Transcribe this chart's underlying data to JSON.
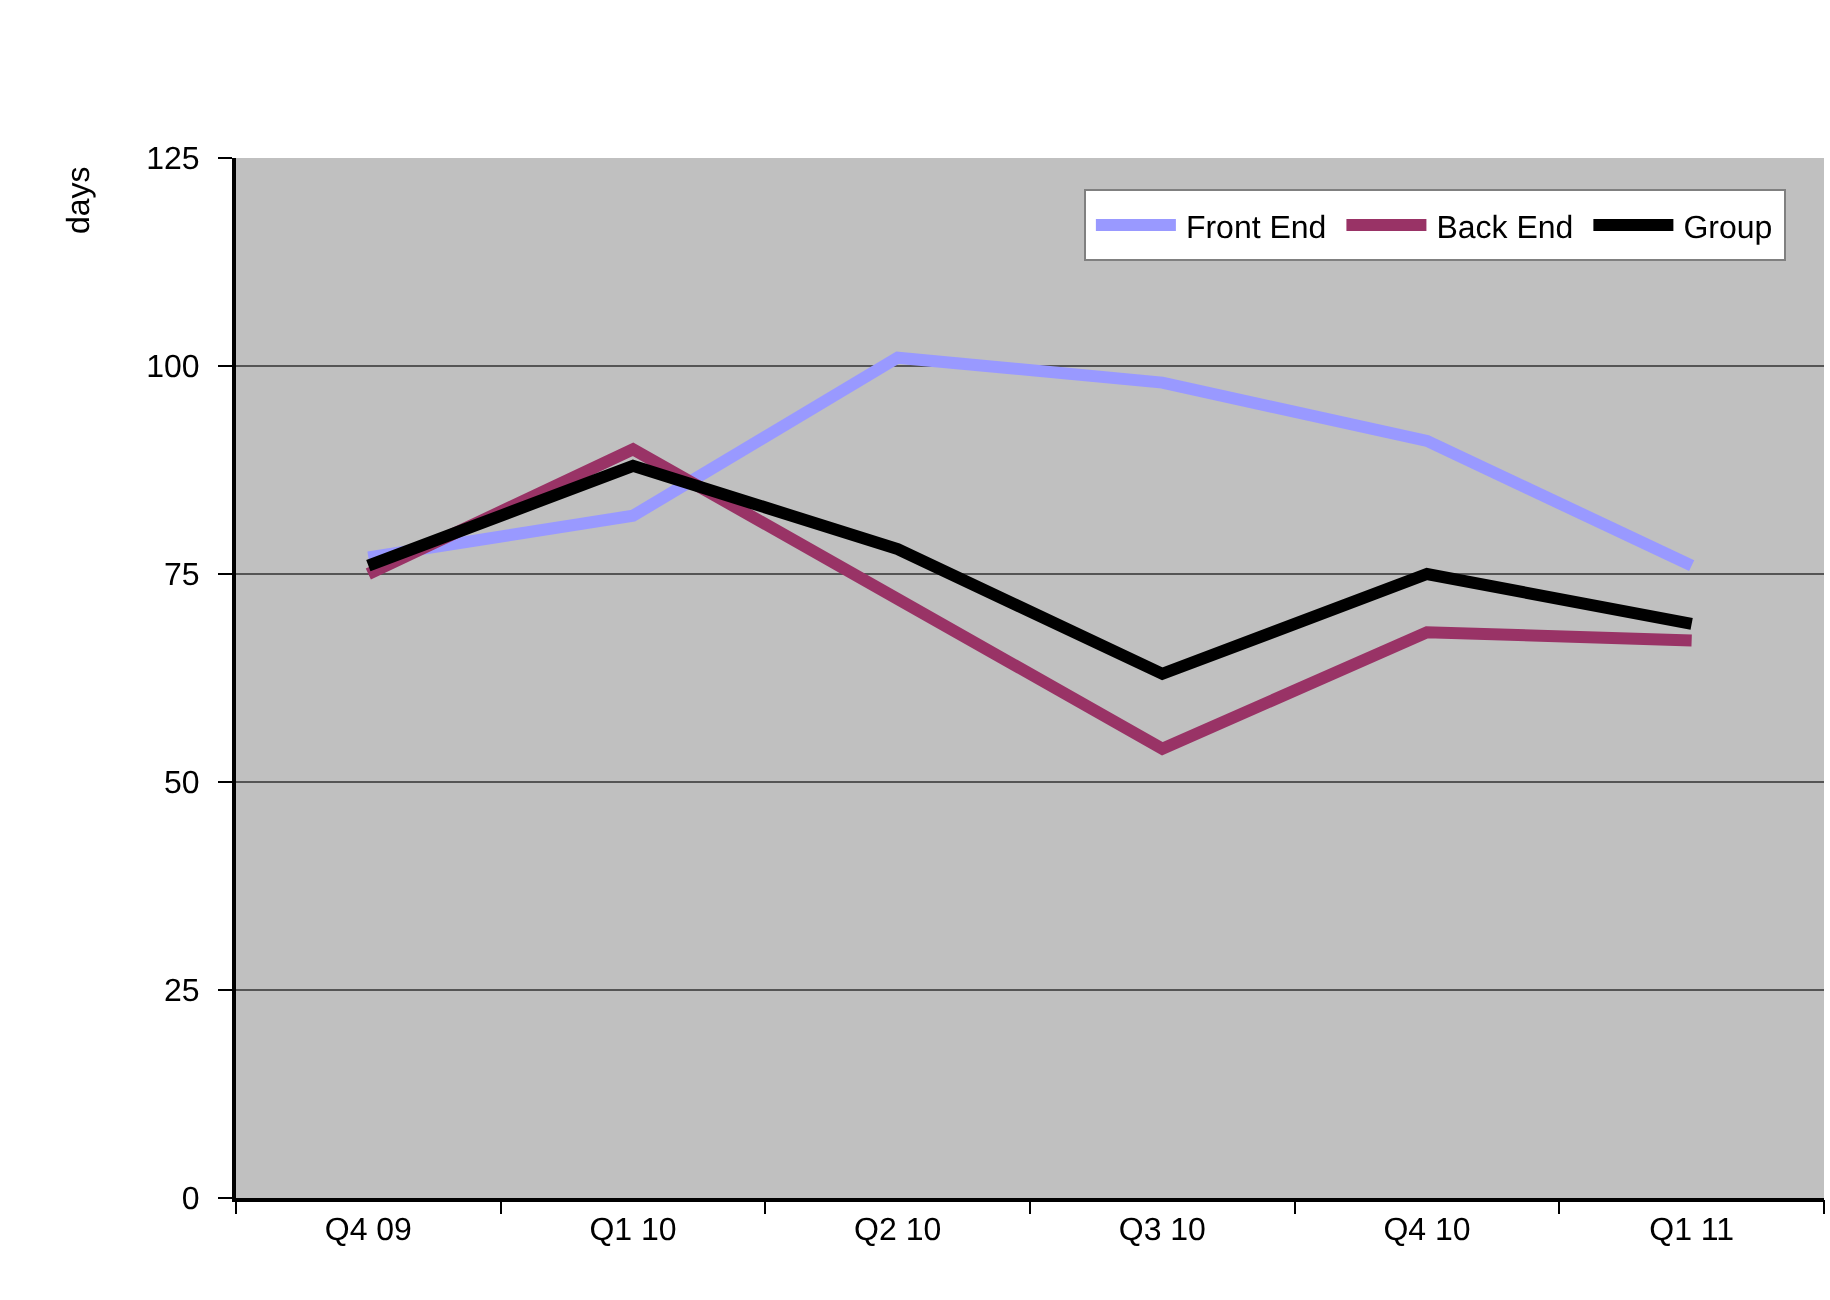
{
  "chart_data": {
    "type": "line",
    "ylabel": "days",
    "categories": [
      "Q4 09",
      "Q1 10",
      "Q2 10",
      "Q3 10",
      "Q4 10",
      "Q1 11"
    ],
    "series": [
      {
        "name": "Front End",
        "color": "#9999ff",
        "values": [
          77,
          82,
          101,
          98,
          91,
          76
        ]
      },
      {
        "name": "Back End",
        "color": "#993366",
        "values": [
          75,
          90,
          72,
          54,
          68,
          67
        ]
      },
      {
        "name": "Group",
        "color": "#000000",
        "values": [
          76,
          88,
          78,
          63,
          75,
          69
        ]
      }
    ],
    "ylim": [
      0,
      125
    ],
    "yticks": [
      0,
      25,
      50,
      75,
      100,
      125
    ],
    "grid": "y",
    "legend": "top right",
    "line_style": "solid"
  }
}
